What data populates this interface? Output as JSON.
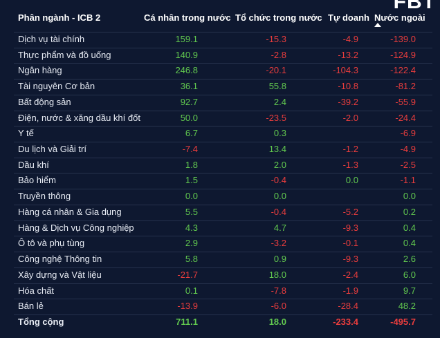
{
  "logo": "FBT",
  "table": {
    "headers": [
      "Phân ngành - ICB 2",
      "Cá nhân trong nước",
      "Tổ chức trong nước",
      "Tự doanh",
      "Nước ngoài"
    ],
    "rows": [
      [
        "Dịch vụ tài chính",
        "159.1",
        "-15.3",
        "-4.9",
        "-139.0"
      ],
      [
        "Thực phẩm và đồ uống",
        "140.9",
        "-2.8",
        "-13.2",
        "-124.9"
      ],
      [
        "Ngân hàng",
        "246.8",
        "-20.1",
        "-104.3",
        "-122.4"
      ],
      [
        "Tài nguyên Cơ bản",
        "36.1",
        "55.8",
        "-10.8",
        "-81.2"
      ],
      [
        "Bất động sản",
        "92.7",
        "2.4",
        "-39.2",
        "-55.9"
      ],
      [
        "Điện, nước & xăng dầu khí đốt",
        "50.0",
        "-23.5",
        "-2.0",
        "-24.4"
      ],
      [
        "Y tế",
        "6.7",
        "0.3",
        null,
        "-6.9"
      ],
      [
        "Du lịch và Giải trí",
        "-7.4",
        "13.4",
        "-1.2",
        "-4.9"
      ],
      [
        "Dầu khí",
        "1.8",
        "2.0",
        "-1.3",
        "-2.5"
      ],
      [
        "Bảo hiểm",
        "1.5",
        "-0.4",
        "0.0",
        "-1.1"
      ],
      [
        "Truyền thông",
        "0.0",
        "0.0",
        null,
        "0.0"
      ],
      [
        "Hàng cá nhân & Gia dụng",
        "5.5",
        "-0.4",
        "-5.2",
        "0.2"
      ],
      [
        "Hàng & Dịch vụ Công nghiệp",
        "4.3",
        "4.7",
        "-9.3",
        "0.4"
      ],
      [
        "Ô tô và phụ tùng",
        "2.9",
        "-3.2",
        "-0.1",
        "0.4"
      ],
      [
        "Công nghệ Thông tin",
        "5.8",
        "0.9",
        "-9.3",
        "2.6"
      ],
      [
        "Xây dựng và Vật liệu",
        "-21.7",
        "18.0",
        "-2.4",
        "6.0"
      ],
      [
        "Hóa chất",
        "0.1",
        "-7.8",
        "-1.9",
        "9.7"
      ],
      [
        "Bán lẻ",
        "-13.9",
        "-6.0",
        "-28.4",
        "48.2"
      ]
    ],
    "total": [
      "Tổng cộng",
      "711.1",
      "18.0",
      "-233.4",
      "-495.7"
    ]
  }
}
